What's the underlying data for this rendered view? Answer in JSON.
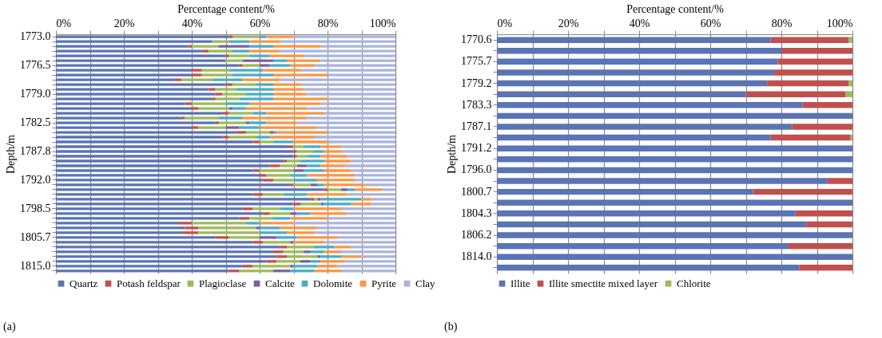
{
  "chart_data": [
    {
      "type": "bar",
      "orientation": "horizontal",
      "stacked": true,
      "xlabel": "Percentage content/%",
      "ylabel": "Depth/m",
      "grid": "x",
      "legend": "bottom",
      "annotations": [
        "(a)"
      ],
      "xlim": [
        0,
        100
      ],
      "xticks": [
        {
          "value": 0,
          "label": "0%"
        },
        {
          "value": 10,
          "label": null
        },
        {
          "value": 20,
          "label": "20%"
        },
        {
          "value": 30,
          "label": null
        },
        {
          "value": 40,
          "label": "40%"
        },
        {
          "value": 50,
          "label": null
        },
        {
          "value": 60,
          "label": "60%"
        },
        {
          "value": 70,
          "label": null
        },
        {
          "value": 80,
          "label": "80%"
        },
        {
          "value": 90,
          "label": null
        },
        {
          "value": 100,
          "label": "100%"
        }
      ],
      "categories": [
        "1773.0",
        null,
        null,
        null,
        null,
        null,
        "1776.5",
        null,
        null,
        null,
        null,
        null,
        "1779.0",
        null,
        null,
        null,
        null,
        null,
        "1782.5",
        null,
        null,
        null,
        null,
        null,
        "1787.8",
        null,
        null,
        null,
        null,
        null,
        "1792.0",
        null,
        null,
        null,
        null,
        null,
        "1798.5",
        null,
        null,
        null,
        null,
        null,
        "1805.7",
        null,
        null,
        null,
        null,
        null,
        "1815.0",
        null
      ],
      "series": [
        {
          "name": "Quartz",
          "color": "#5a74b4",
          "values": [
            51,
            46,
            39,
            43,
            50,
            50,
            54,
            40,
            40,
            35,
            50,
            45,
            47,
            46,
            38,
            40,
            49,
            37,
            47,
            40,
            53,
            49,
            58,
            68,
            70,
            70,
            67,
            63,
            58,
            60,
            61,
            69,
            79,
            58,
            75,
            70,
            55,
            61,
            54,
            36,
            38,
            37,
            47,
            58,
            66,
            64,
            65,
            62,
            55,
            51
          ]
        },
        {
          "name": "Potash feldspar",
          "color": "#c0504d",
          "values": [
            1,
            0,
            1,
            2,
            1,
            0,
            1,
            3,
            3,
            2,
            2,
            2,
            2,
            1,
            2,
            2,
            2,
            1,
            1,
            2,
            3,
            2,
            2,
            2,
            1,
            1,
            1,
            3,
            2,
            2,
            3,
            1,
            1,
            3,
            1,
            2,
            3,
            2,
            3,
            4,
            4,
            5,
            4,
            3,
            2,
            3,
            3,
            3,
            3,
            3
          ]
        },
        {
          "name": "Plagioclase",
          "color": "#9bbb59",
          "values": [
            8,
            5,
            8,
            7,
            6,
            5,
            5,
            8,
            9,
            9,
            7,
            6,
            7,
            7,
            10,
            9,
            7,
            10,
            8,
            8,
            7,
            8,
            4,
            3,
            5,
            3,
            4,
            5,
            10,
            7,
            6,
            5,
            4,
            6,
            1,
            6,
            8,
            6,
            7,
            16,
            17,
            18,
            9,
            8,
            8,
            6,
            9,
            7,
            11,
            10
          ]
        },
        {
          "name": "Calcite",
          "color": "#7d5fa0",
          "values": [
            0,
            0,
            9,
            0,
            0,
            9,
            3,
            0,
            0,
            0,
            0,
            0,
            0,
            0,
            0,
            1,
            0,
            0,
            1,
            4,
            1,
            0,
            0,
            0,
            0,
            0,
            0,
            3,
            3,
            0,
            0,
            2,
            2,
            0,
            1,
            1,
            0,
            2,
            0,
            0,
            1,
            0,
            5,
            1,
            0,
            2,
            1,
            3,
            1,
            5
          ]
        },
        {
          "name": "Dolomite",
          "color": "#4bacc6",
          "values": [
            2,
            6,
            7,
            5,
            6,
            4,
            6,
            10,
            12,
            9,
            5,
            11,
            8,
            10,
            7,
            4,
            4,
            7,
            5,
            6,
            1,
            4,
            6,
            5,
            3,
            4,
            7,
            4,
            6,
            5,
            7,
            2,
            2,
            7,
            12,
            8,
            4,
            4,
            5,
            4,
            6,
            8,
            6,
            0,
            6,
            4,
            6,
            3,
            7,
            7
          ]
        },
        {
          "name": "Pyrite",
          "color": "#f79646",
          "values": [
            8,
            9,
            14,
            9,
            10,
            10,
            7,
            11,
            16,
            11,
            8,
            9,
            10,
            16,
            21,
            18,
            17,
            19,
            9,
            17,
            15,
            13,
            10,
            6,
            5,
            8,
            8,
            7,
            8,
            14,
            11,
            12,
            8,
            12,
            3,
            6,
            14,
            11,
            11,
            10,
            11,
            8,
            12,
            9,
            5,
            5,
            6,
            7,
            6,
            8
          ]
        },
        {
          "name": "Clay",
          "color": "#aab4dc",
          "values": [
            30,
            34,
            22,
            34,
            27,
            22,
            24,
            28,
            20,
            34,
            28,
            27,
            26,
            20,
            22,
            26,
            21,
            26,
            29,
            23,
            20,
            24,
            20,
            16,
            16,
            14,
            13,
            15,
            13,
            12,
            12,
            9,
            4,
            14,
            7,
            7,
            16,
            14,
            20,
            30,
            23,
            24,
            17,
            21,
            13,
            16,
            10,
            15,
            17,
            16
          ]
        }
      ]
    },
    {
      "type": "bar",
      "orientation": "horizontal",
      "stacked": true,
      "xlabel": "Percentage content/%",
      "ylabel": "Depth/m",
      "grid": "x",
      "legend": "bottom",
      "annotations": [
        "(b)"
      ],
      "xlim": [
        0,
        100
      ],
      "xticks": [
        {
          "value": 0,
          "label": "0%"
        },
        {
          "value": 10,
          "label": null
        },
        {
          "value": 20,
          "label": "20%"
        },
        {
          "value": 30,
          "label": null
        },
        {
          "value": 40,
          "label": "40%"
        },
        {
          "value": 50,
          "label": null
        },
        {
          "value": 60,
          "label": "60%"
        },
        {
          "value": 70,
          "label": null
        },
        {
          "value": 80,
          "label": "80%"
        },
        {
          "value": 90,
          "label": null
        },
        {
          "value": 100,
          "label": "100%"
        }
      ],
      "categories": [
        "1770.6",
        null,
        "1775.7",
        null,
        "1779.2",
        null,
        "1783.3",
        null,
        "1787.1",
        null,
        "1791.2",
        null,
        "1796.0",
        null,
        "1800.7",
        null,
        "1804.3",
        null,
        "1806.2",
        null,
        "1814.0",
        null
      ],
      "series": [
        {
          "name": "Illite",
          "color": "#5a74b4",
          "values": [
            77,
            80,
            79,
            78,
            76,
            70,
            86,
            100,
            83,
            77,
            100,
            100,
            100,
            93,
            72,
            100,
            84,
            87,
            100,
            82,
            100,
            85
          ]
        },
        {
          "name": "Illite smectite mixed layer",
          "color": "#c0504d",
          "values": [
            22,
            20,
            21,
            22,
            23,
            28,
            14,
            0,
            17,
            22.5,
            0,
            0,
            0,
            7,
            28,
            0,
            16,
            13,
            0,
            18,
            0,
            15
          ]
        },
        {
          "name": "Chlorite",
          "color": "#9bbb59",
          "values": [
            1,
            0,
            0,
            0,
            1,
            2,
            0,
            0,
            0,
            0.5,
            0,
            0,
            0,
            0,
            0,
            0,
            0,
            0,
            0,
            0,
            0,
            0
          ]
        }
      ]
    }
  ]
}
